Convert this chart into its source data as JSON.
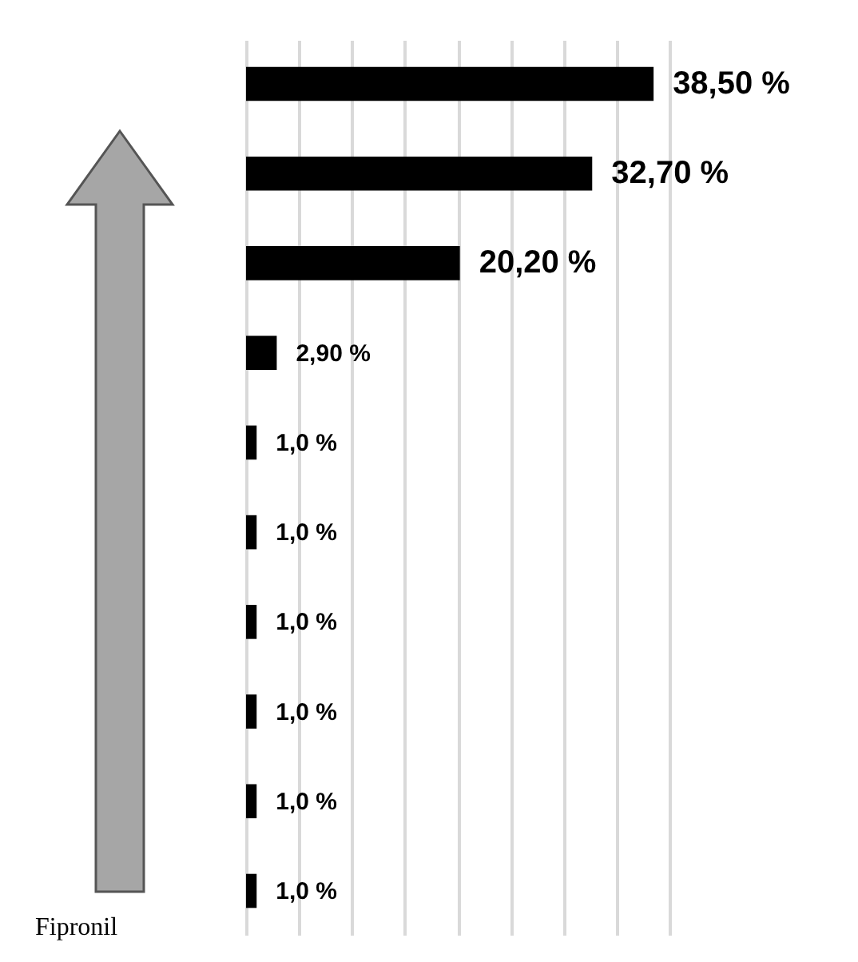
{
  "chart_data": {
    "type": "bar",
    "orientation": "horizontal",
    "categories": [
      null,
      null,
      null,
      null,
      null,
      null,
      null,
      null,
      null,
      null
    ],
    "values": [
      38.5,
      32.7,
      20.2,
      2.9,
      1.0,
      1.0,
      1.0,
      1.0,
      1.0,
      1.0
    ],
    "value_labels": [
      "38,50 %",
      "32,70 %",
      "20,20 %",
      "2,90 %",
      "1,0 %",
      "1,0 %",
      "1,0 %",
      "1,0 %",
      "1,0 %",
      "1,0 %"
    ],
    "color": "#000000",
    "grid": "x",
    "annotations": [
      "Fipronil"
    ]
  }
}
